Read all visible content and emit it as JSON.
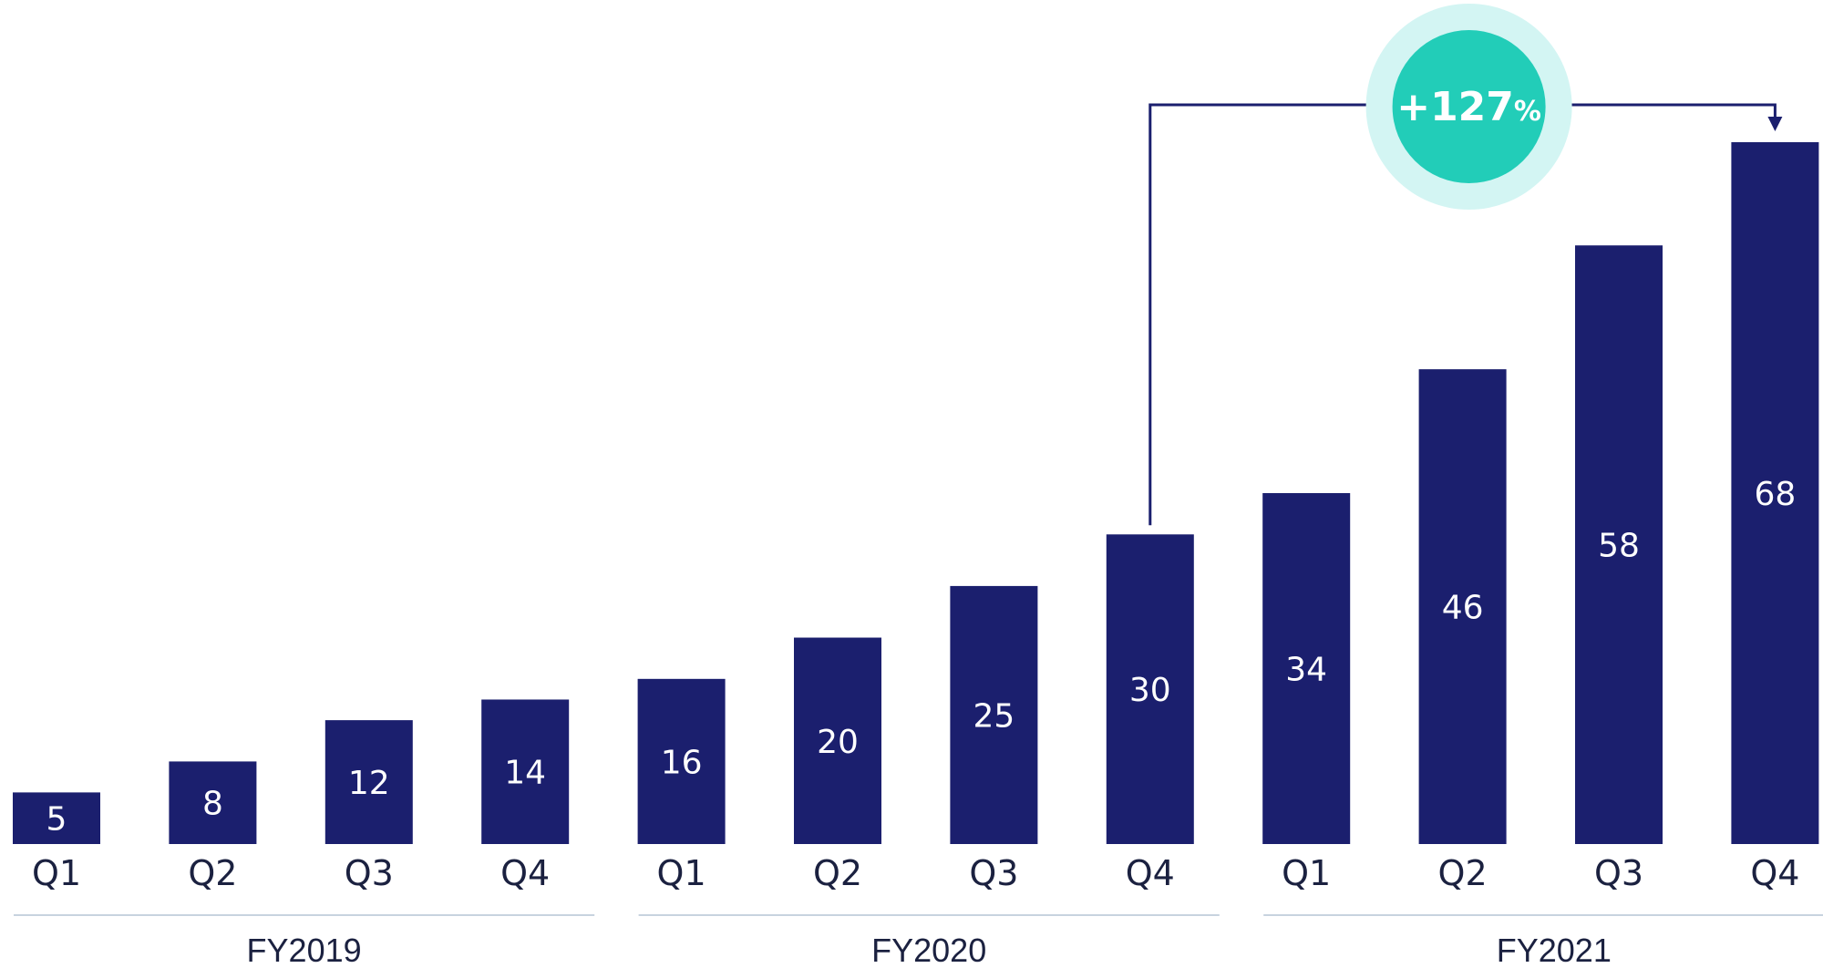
{
  "chart_data": {
    "type": "bar",
    "categories": [
      "Q1",
      "Q2",
      "Q3",
      "Q4",
      "Q1",
      "Q2",
      "Q3",
      "Q4",
      "Q1",
      "Q2",
      "Q3",
      "Q4"
    ],
    "values": [
      5,
      8,
      12,
      14,
      16,
      20,
      25,
      30,
      34,
      46,
      58,
      68
    ],
    "groups": [
      {
        "label": "FY2019",
        "from": 0,
        "to": 3
      },
      {
        "label": "FY2020",
        "from": 4,
        "to": 7
      },
      {
        "label": "FY2021",
        "from": 8,
        "to": 11
      }
    ],
    "ylim": [
      0,
      68
    ],
    "grid": false,
    "annotation": {
      "value": "+127",
      "unit": "%",
      "from_index": 7,
      "to_index": 11
    },
    "colors": {
      "bar": "#1b1f6e",
      "bar_label": "#ffffff",
      "tick_label": "#1b2140",
      "group_rule": "#c8d3df",
      "callout_inner": "#22cdb8",
      "callout_outer": "#d3f5f3",
      "connector": "#1b1f6e"
    }
  }
}
